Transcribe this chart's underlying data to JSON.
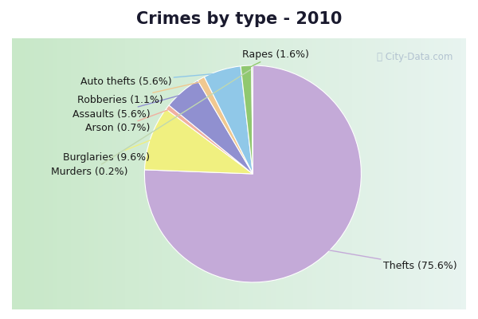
{
  "title": "Crimes by type - 2010",
  "slices": [
    {
      "label": "Thefts",
      "pct": 75.6,
      "color": "#c4aad8"
    },
    {
      "label": "Burglaries",
      "pct": 9.6,
      "color": "#f0f080"
    },
    {
      "label": "Arson",
      "pct": 0.7,
      "color": "#f0b0a0"
    },
    {
      "label": "Assaults",
      "pct": 5.6,
      "color": "#9090d0"
    },
    {
      "label": "Robberies",
      "pct": 1.1,
      "color": "#f0c890"
    },
    {
      "label": "Auto thefts",
      "pct": 5.6,
      "color": "#90c8e8"
    },
    {
      "label": "Rapes",
      "pct": 1.6,
      "color": "#90c870"
    },
    {
      "label": "Murders",
      "pct": 0.2,
      "color": "#c0d8b0"
    }
  ],
  "title_bg": "#00e8f8",
  "chart_bg_left": "#c8e8c8",
  "chart_bg_right": "#e8f4f0",
  "border_color": "#00e8f8",
  "watermark": "City-Data.com",
  "title_fontsize": 15,
  "label_fontsize": 9
}
